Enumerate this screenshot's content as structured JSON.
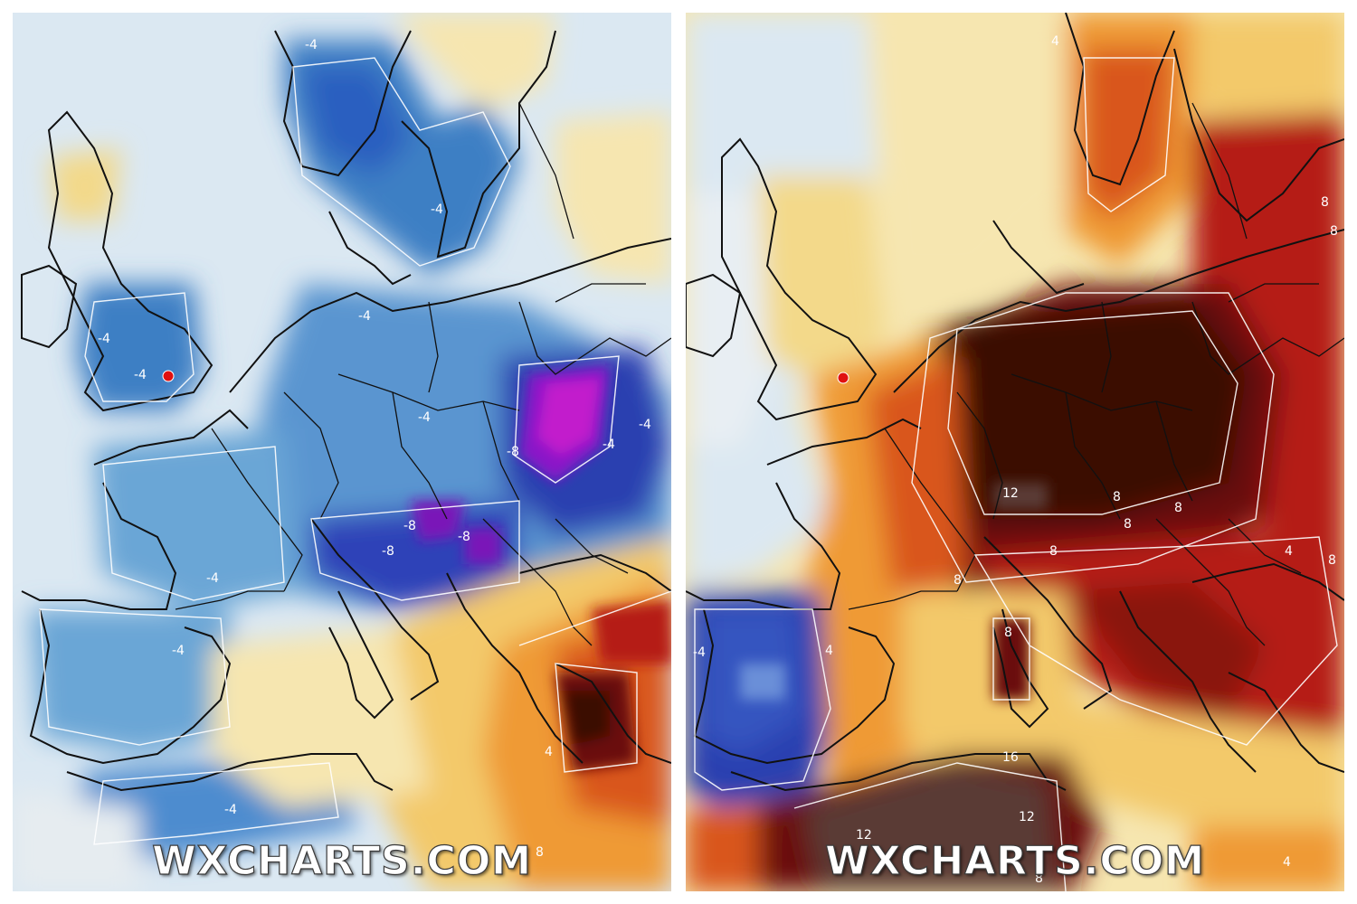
{
  "watermark": "WXCHARTS.COM",
  "panels": [
    {
      "id": "left",
      "labels": [
        {
          "text": "-4"
        },
        {
          "text": "-4"
        },
        {
          "text": "-4"
        },
        {
          "text": "-4"
        },
        {
          "text": "-4"
        },
        {
          "text": "-4"
        },
        {
          "text": "-4"
        },
        {
          "text": "-4"
        },
        {
          "text": "-4"
        },
        {
          "text": "-4"
        },
        {
          "text": "-4"
        },
        {
          "text": "-8"
        },
        {
          "text": "-8"
        },
        {
          "text": "-8"
        },
        {
          "text": "-8"
        },
        {
          "text": "4"
        },
        {
          "text": "8"
        }
      ]
    },
    {
      "id": "right",
      "labels": [
        {
          "text": "4"
        },
        {
          "text": "8"
        },
        {
          "text": "8"
        },
        {
          "text": "12"
        },
        {
          "text": "8"
        },
        {
          "text": "8"
        },
        {
          "text": "8"
        },
        {
          "text": "8"
        },
        {
          "text": "8"
        },
        {
          "text": "4"
        },
        {
          "text": "8"
        },
        {
          "text": "-4"
        },
        {
          "text": "4"
        },
        {
          "text": "8"
        },
        {
          "text": "16"
        },
        {
          "text": "12"
        },
        {
          "text": "12"
        },
        {
          "text": "8"
        },
        {
          "text": "4"
        }
      ]
    }
  ],
  "colors": {
    "pale_blue": "#dbe8f2",
    "blue": "#6aa6d6",
    "mid_blue": "#3d7fc4",
    "deep_blue": "#2a3fb0",
    "purple": "#8a17c8",
    "magenta": "#c21ccc",
    "pale_yellow": "#f6e6b0",
    "yellow": "#f3c96a",
    "orange": "#ef9a36",
    "dark_orange": "#d9571c",
    "red": "#b51f14",
    "dark_red": "#6b0a08",
    "maroon": "#3b0806",
    "brown_grey": "#5a3a36",
    "marker": "#e01010"
  },
  "marker": "london-marker"
}
